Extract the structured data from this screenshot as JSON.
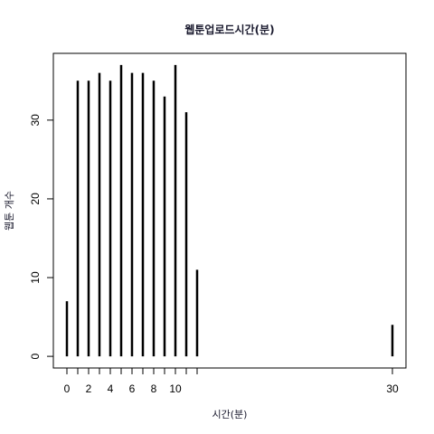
{
  "chart_data": {
    "type": "bar",
    "title": "웹툰업로드시간(분)",
    "xlabel": "시간(분)",
    "ylabel": "웹툰 개수",
    "x": [
      0,
      1,
      2,
      3,
      4,
      5,
      6,
      7,
      8,
      9,
      10,
      11,
      12,
      30
    ],
    "values": [
      7,
      35,
      35,
      36,
      35,
      37,
      36,
      36,
      35,
      33,
      37,
      31,
      11,
      4
    ],
    "x_ticks": [
      0,
      1,
      2,
      3,
      4,
      5,
      6,
      7,
      8,
      9,
      10,
      11,
      12,
      30
    ],
    "x_tick_labels": [
      "0",
      "",
      "2",
      "",
      "4",
      "",
      "6",
      "",
      "8",
      "",
      "10",
      "",
      "",
      "30"
    ],
    "y_ticks": [
      0,
      10,
      20,
      30
    ],
    "y_tick_labels": [
      "0",
      "10",
      "20",
      "30"
    ],
    "xlim": [
      -1.25,
      31.25
    ],
    "ylim": [
      -1.48,
      38.48
    ],
    "grid": false,
    "legend": "none"
  }
}
